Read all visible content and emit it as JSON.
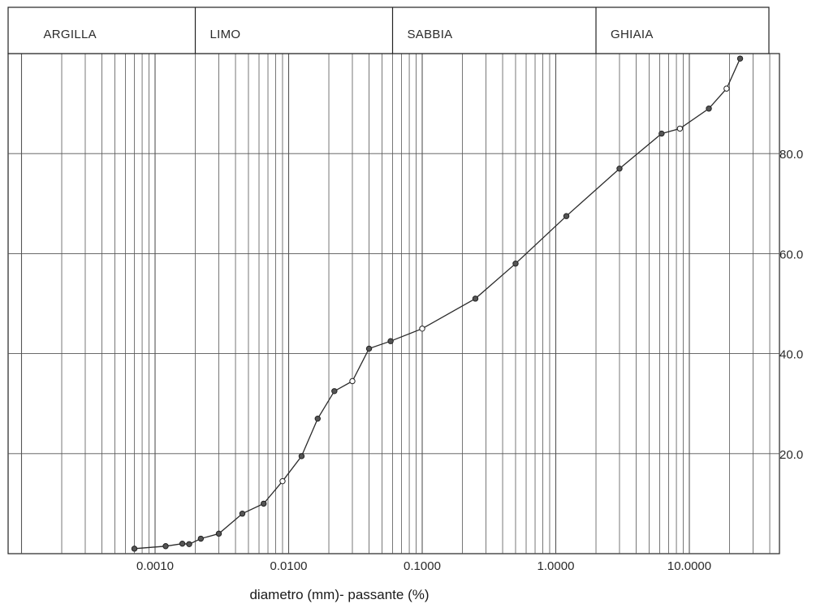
{
  "chart_data": {
    "type": "line",
    "title": "",
    "xlabel": "diametro (mm)- passante (%)",
    "ylabel": "",
    "x_scale": "log",
    "xlim": [
      0.0001,
      50
    ],
    "ylim": [
      0,
      100
    ],
    "grid": true,
    "x_ticks": [
      {
        "value": 0.001,
        "label": "0.0010"
      },
      {
        "value": 0.01,
        "label": "0.0100"
      },
      {
        "value": 0.1,
        "label": "0.1000"
      },
      {
        "value": 1,
        "label": "1.0000"
      },
      {
        "value": 10,
        "label": "10.0000"
      }
    ],
    "y_ticks": [
      {
        "value": 20,
        "label": "20.0"
      },
      {
        "value": 40,
        "label": "40.0"
      },
      {
        "value": 60,
        "label": "60.0"
      },
      {
        "value": 80,
        "label": "80.0"
      }
    ],
    "bands": [
      {
        "label": "ARGILLA",
        "from": 0.0001,
        "to": 0.002
      },
      {
        "label": "LIMO",
        "from": 0.002,
        "to": 0.06
      },
      {
        "label": "SABBIA",
        "from": 0.06,
        "to": 2
      },
      {
        "label": "GHIAIA",
        "from": 2,
        "to": 50
      }
    ],
    "series": [
      {
        "x": [
          0.0007,
          0.0012,
          0.0016,
          0.0018,
          0.0022,
          0.003,
          0.0045,
          0.0065,
          0.009,
          0.0125,
          0.0165,
          0.022,
          0.03,
          0.04,
          0.058,
          0.1,
          0.25,
          0.5,
          1.2,
          3,
          6.2,
          8.5,
          14,
          19,
          24
        ],
        "y": [
          1.0,
          1.5,
          2.0,
          1.9,
          3.0,
          4.0,
          8.0,
          10.0,
          14.5,
          19.5,
          27.0,
          32.5,
          34.5,
          41.0,
          42.5,
          45.0,
          51.0,
          58.0,
          67.5,
          77.0,
          84.0,
          85.0,
          89.0,
          93.0,
          99.0
        ],
        "open_markers": [
          0.009,
          0.03,
          0.1,
          8.5,
          19
        ]
      }
    ],
    "line_color": "#2b2b2b",
    "grid_color": "#555555"
  }
}
